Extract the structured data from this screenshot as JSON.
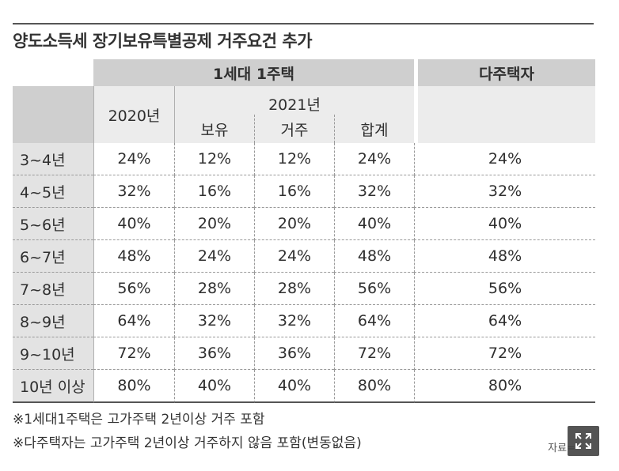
{
  "title": "양도소득세 장기보유특별공제 거주요건 추가",
  "header": {
    "group_one": "1세대 1주택",
    "group_multi": "다주택자",
    "col_2020": "2020년",
    "col_2021": "2021년",
    "sub_hold": "보유",
    "sub_live": "거주",
    "sub_total": "합계"
  },
  "rows": [
    {
      "period": "3~4년",
      "y2020": "24%",
      "hold": "12%",
      "live": "12%",
      "total": "24%",
      "multi": "24%"
    },
    {
      "period": "4~5년",
      "y2020": "32%",
      "hold": "16%",
      "live": "16%",
      "total": "32%",
      "multi": "32%"
    },
    {
      "period": "5~6년",
      "y2020": "40%",
      "hold": "20%",
      "live": "20%",
      "total": "40%",
      "multi": "40%"
    },
    {
      "period": "6~7년",
      "y2020": "48%",
      "hold": "24%",
      "live": "24%",
      "total": "48%",
      "multi": "48%"
    },
    {
      "period": "7~8년",
      "y2020": "56%",
      "hold": "28%",
      "live": "28%",
      "total": "56%",
      "multi": "56%"
    },
    {
      "period": "8~9년",
      "y2020": "64%",
      "hold": "32%",
      "live": "32%",
      "total": "64%",
      "multi": "64%"
    },
    {
      "period": "9~10년",
      "y2020": "72%",
      "hold": "36%",
      "live": "36%",
      "total": "72%",
      "multi": "72%"
    },
    {
      "period": "10년 이상",
      "y2020": "80%",
      "hold": "40%",
      "live": "40%",
      "total": "80%",
      "multi": "80%"
    }
  ],
  "notes": [
    "※1세대1주택은 고가주택 2년이상 거주 포함",
    "※다주택자는 고가주택 2년이상 거주하지 않음 포함(변동없음)"
  ],
  "source": "자료=",
  "expand_icon": "expand-icon"
}
